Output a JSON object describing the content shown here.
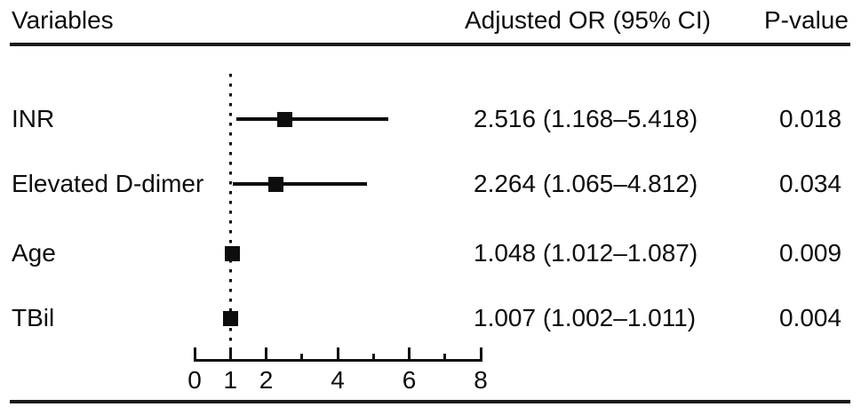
{
  "table": {
    "header": [
      "Variables",
      "Adjusted OR (95% CI)",
      "P-value"
    ],
    "rows": [
      {
        "variable": "INR",
        "or_ci": "2.516 (1.168–5.418)",
        "p_value": "0.018"
      },
      {
        "variable": "Elevated D-dimer",
        "or_ci": "2.264 (1.065–4.812)",
        "p_value": "0.034"
      },
      {
        "variable": "Age",
        "or_ci": "1.048 (1.012–1.087)",
        "p_value": "0.009"
      },
      {
        "variable": "TBil",
        "or_ci": "1.007 (1.002–1.011)",
        "p_value": "0.004"
      }
    ]
  },
  "chart_data": {
    "type": "scatter",
    "subtype": "forest-plot",
    "title": "",
    "xlabel": "",
    "xlim": [
      0,
      8
    ],
    "x_ticks_all": [
      0,
      1,
      2,
      3,
      4,
      5,
      6,
      7,
      8
    ],
    "x_ticks_labeled": [
      0,
      1,
      2,
      4,
      6,
      8
    ],
    "x_tick_labels": [
      "0",
      "1",
      "2",
      "4",
      "6",
      "8"
    ],
    "reference_line_x": 1,
    "reference_line_style": "dotted",
    "marker": "black-square",
    "grid": false,
    "legend": false,
    "series": [
      {
        "name": "INR",
        "or": 2.516,
        "ci_low": 1.168,
        "ci_high": 5.418,
        "p_value": 0.018
      },
      {
        "name": "Elevated D-dimer",
        "or": 2.264,
        "ci_low": 1.065,
        "ci_high": 4.812,
        "p_value": 0.034
      },
      {
        "name": "Age",
        "or": 1.048,
        "ci_low": 1.012,
        "ci_high": 1.087,
        "p_value": 0.009
      },
      {
        "name": "TBil",
        "or": 1.007,
        "ci_low": 1.002,
        "ci_high": 1.011,
        "p_value": 0.004
      }
    ]
  },
  "colors": {
    "foreground": "#0d0d0d",
    "background": "#ffffff"
  }
}
